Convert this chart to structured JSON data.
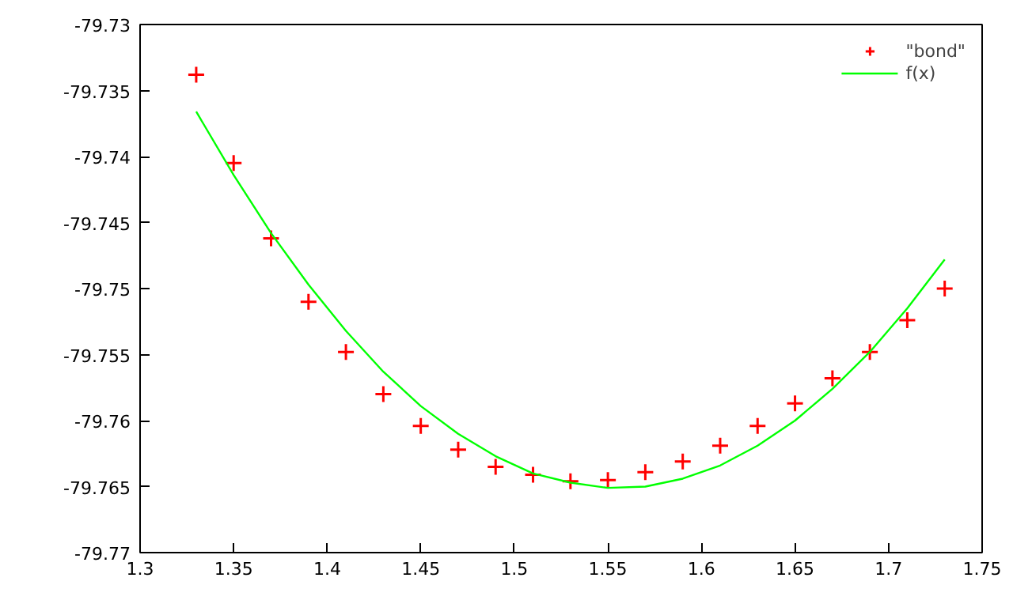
{
  "chart_data": {
    "type": "scatter",
    "xlim": [
      1.3,
      1.75
    ],
    "xticks": [
      1.3,
      1.35,
      1.4,
      1.45,
      1.5,
      1.55,
      1.6,
      1.65,
      1.7,
      1.75
    ],
    "ylim": [
      -79.77,
      -79.73
    ],
    "yticks": [
      -79.77,
      -79.765,
      -79.76,
      -79.755,
      -79.75,
      -79.745,
      -79.74,
      -79.735,
      -79.73
    ],
    "grid": false,
    "legend": "top right",
    "series": [
      {
        "name": "\"bond\"",
        "marker": "cross",
        "color": "#ff0000",
        "x": [
          1.33,
          1.35,
          1.37,
          1.39,
          1.41,
          1.43,
          1.45,
          1.47,
          1.49,
          1.51,
          1.53,
          1.55,
          1.57,
          1.59,
          1.61,
          1.63,
          1.65,
          1.67,
          1.69,
          1.71,
          1.73
        ],
        "values": [
          -79.7338,
          -79.7405,
          -79.7462,
          -79.751,
          -79.7548,
          -79.758,
          -79.7604,
          -79.7622,
          -79.7635,
          -79.7641,
          -79.7646,
          -79.7645,
          -79.7639,
          -79.7631,
          -79.7619,
          -79.7604,
          -79.7587,
          -79.7568,
          -79.7548,
          -79.7524,
          -79.75
        ]
      },
      {
        "name": "f(x)",
        "type": "line",
        "line_style": "solid",
        "color": "#00ff00",
        "x": [
          1.33,
          1.35,
          1.37,
          1.39,
          1.41,
          1.43,
          1.45,
          1.47,
          1.49,
          1.51,
          1.53,
          1.55,
          1.57,
          1.59,
          1.61,
          1.63,
          1.65,
          1.67,
          1.69,
          1.71,
          1.73
        ],
        "values": [
          -79.7366,
          -79.7414,
          -79.7458,
          -79.7497,
          -79.7532,
          -79.7563,
          -79.7589,
          -79.761,
          -79.7627,
          -79.764,
          -79.7647,
          -79.7651,
          -79.765,
          -79.7644,
          -79.7634,
          -79.7619,
          -79.76,
          -79.7576,
          -79.7548,
          -79.7515,
          -79.7478
        ]
      }
    ]
  }
}
